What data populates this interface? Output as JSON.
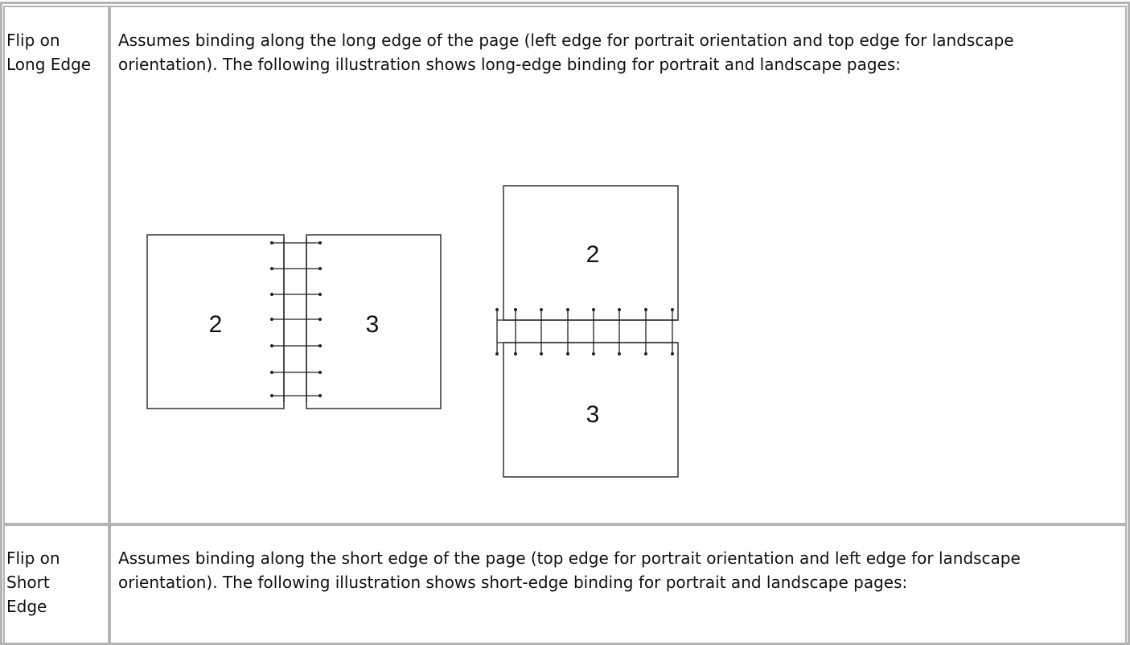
{
  "table": {
    "rows": [
      {
        "label": "Flip on Long Edge",
        "description": "Assumes binding along the long edge of the page (left edge for portrait orientation and top edge for landscape orientation). The following illustration shows long-edge binding for portrait and landscape pages:",
        "illustration": {
          "side_by_side_pages": [
            "2",
            "3"
          ],
          "stacked_pages": [
            "2",
            "3"
          ]
        }
      },
      {
        "label": "Flip on Short Edge",
        "description": "Assumes binding along the short edge of the page (top edge for portrait orientation and left edge for landscape orientation). The following illustration shows short-edge binding for portrait and landscape pages:"
      }
    ]
  }
}
